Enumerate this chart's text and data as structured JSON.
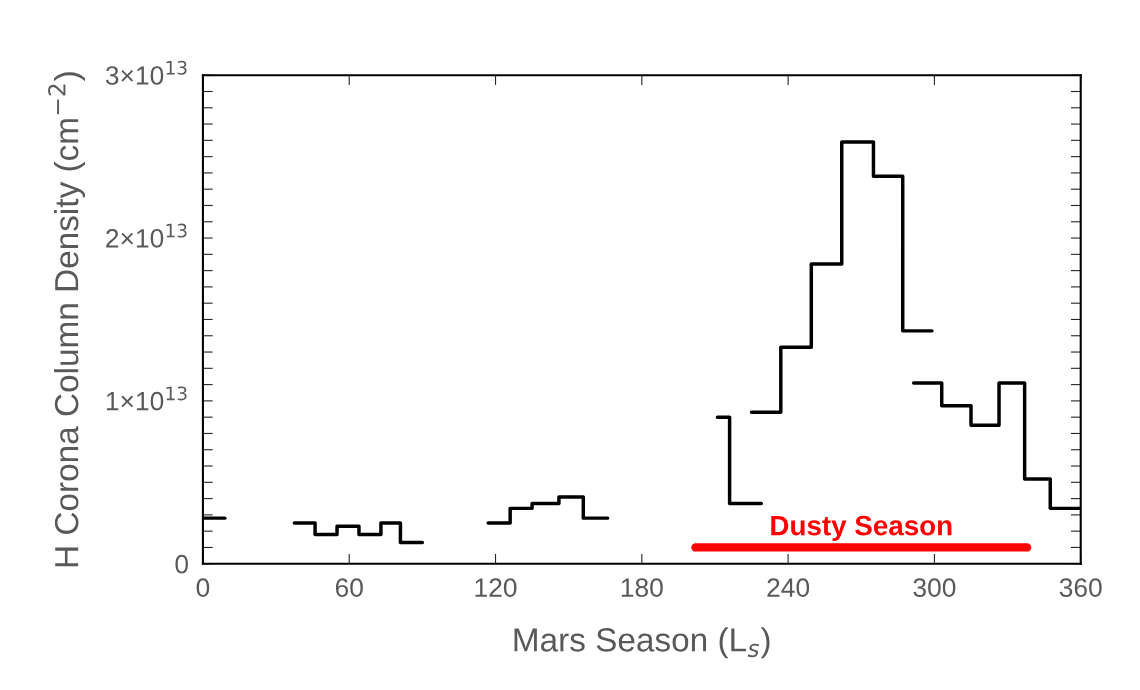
{
  "chart_data": {
    "type": "step",
    "xlabel": "Mars Season (L$_{s}$)",
    "ylabel": "H Corona Column Density (cm$^{−2}$)",
    "series": [
      {
        "color": "#000000",
        "x": [
          0,
          9
        ],
        "values": [
          2800000000000.0,
          2800000000000.0
        ]
      },
      {
        "color": "#000000",
        "x": [
          37.5,
          46,
          55,
          64,
          73,
          81,
          90
        ],
        "values": [
          2500000000000.0,
          1800000000000.0,
          2300000000000.0,
          1800000000000.0,
          2500000000000.0,
          1300000000000.0,
          1300000000000.0
        ]
      },
      {
        "color": "#000000",
        "x": [
          117,
          126,
          135,
          146,
          156,
          166
        ],
        "values": [
          2500000000000.0,
          3400000000000.0,
          3700000000000.0,
          4100000000000.0,
          2800000000000.0,
          2800000000000.0
        ]
      },
      {
        "color": "#000000",
        "x": [
          211,
          216,
          229
        ],
        "values": [
          9000000000000.0,
          3700000000000.0,
          3700000000000.0
        ]
      },
      {
        "color": "#000000",
        "x": [
          225,
          237,
          249.5,
          262,
          275,
          287,
          299
        ],
        "values": [
          9300000000000.0,
          13300000000000.0,
          18400000000000.0,
          25900000000000.0,
          23800000000000.0,
          14300000000000.0,
          14300000000000.0
        ]
      },
      {
        "color": "#000000",
        "x": [
          291.5,
          303,
          315,
          326.5,
          337,
          347.5,
          360
        ],
        "values": [
          11100000000000.0,
          9700000000000.0,
          8500000000000.0,
          11100000000000.0,
          5200000000000.0,
          3400000000000.0,
          3400000000000.0
        ]
      },
      {
        "type": "line",
        "color": "#ff0000",
        "x": [
          202,
          338
        ],
        "values": [
          1000000000000.0,
          1000000000000.0
        ]
      }
    ],
    "annotations": [
      {
        "text": "Dusty Season",
        "x": 270,
        "y": 1400000000000.0
      }
    ],
    "xlim": [
      0,
      360
    ],
    "xticks": [
      0,
      60,
      120,
      180,
      240,
      300,
      360
    ],
    "ylim": [
      0,
      30000000000000.0
    ],
    "yticks": [
      {
        "value": 0,
        "label": "0"
      },
      {
        "value": 10000000000000.0,
        "label": "1×10$^{13}$"
      },
      {
        "value": 20000000000000.0,
        "label": "2×10$^{13}$"
      },
      {
        "value": 30000000000000.0,
        "label": "3×10$^{13}$"
      },
      {
        "value": 1000000000000.0,
        "label": null
      },
      {
        "value": 2000000000000.0,
        "label": null
      },
      {
        "value": 3000000000000.0,
        "label": null
      },
      {
        "value": 4000000000000.0,
        "label": null
      },
      {
        "value": 5000000000000.0,
        "label": null
      },
      {
        "value": 6000000000000.0,
        "label": null
      },
      {
        "value": 7000000000000.0,
        "label": null
      },
      {
        "value": 8000000000000.0,
        "label": null
      },
      {
        "value": 9000000000000.0,
        "label": null
      },
      {
        "value": 11000000000000.0,
        "label": null
      },
      {
        "value": 12000000000000.0,
        "label": null
      },
      {
        "value": 13000000000000.0,
        "label": null
      },
      {
        "value": 14000000000000.0,
        "label": null
      },
      {
        "value": 15000000000000.0,
        "label": null
      },
      {
        "value": 16000000000000.0,
        "label": null
      },
      {
        "value": 17000000000000.0,
        "label": null
      },
      {
        "value": 18000000000000.0,
        "label": null
      },
      {
        "value": 19000000000000.0,
        "label": null
      },
      {
        "value": 21000000000000.0,
        "label": null
      },
      {
        "value": 22000000000000.0,
        "label": null
      },
      {
        "value": 23000000000000.0,
        "label": null
      },
      {
        "value": 24000000000000.0,
        "label": null
      },
      {
        "value": 25000000000000.0,
        "label": null
      },
      {
        "value": 26000000000000.0,
        "label": null
      },
      {
        "value": 27000000000000.0,
        "label": null
      },
      {
        "value": 28000000000000.0,
        "label": null
      },
      {
        "value": 29000000000000.0,
        "label": null
      }
    ],
    "grid": false,
    "legend": false
  }
}
